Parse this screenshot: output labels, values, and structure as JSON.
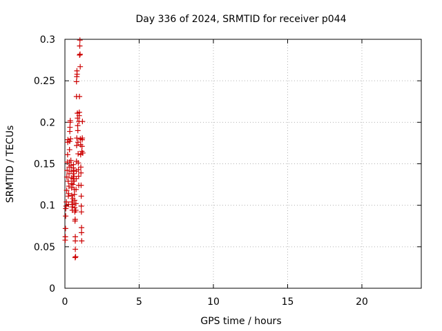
{
  "chart_data": {
    "type": "scatter",
    "title": "Day 336 of 2024, SRMTID for receiver p044",
    "xlabel": "GPS time / hours",
    "ylabel": "SRMTID / TECUs",
    "xlim": [
      0,
      24
    ],
    "ylim": [
      0,
      0.3
    ],
    "x_ticks": [
      0,
      5,
      10,
      15,
      20
    ],
    "x_tick_labels": [
      "0",
      "5",
      "10",
      "15",
      "20"
    ],
    "y_ticks": [
      0,
      0.05,
      0.1,
      0.15,
      0.2,
      0.25,
      0.3
    ],
    "y_tick_labels": [
      "0",
      "0.05",
      "0.1",
      "0.15",
      "0.2",
      "0.25",
      "0.3"
    ],
    "grid": true,
    "marker": "+",
    "marker_color": "#cc0000",
    "series": [
      {
        "name": "SRMTID",
        "points": [
          [
            0.02,
            0.058
          ],
          [
            0.03,
            0.062
          ],
          [
            0.04,
            0.072
          ],
          [
            0.05,
            0.087
          ],
          [
            0.06,
            0.096
          ],
          [
            0.08,
            0.099
          ],
          [
            0.1,
            0.104
          ],
          [
            0.12,
            0.118
          ],
          [
            0.13,
            0.134
          ],
          [
            0.15,
            0.142
          ],
          [
            0.16,
            0.152
          ],
          [
            0.18,
            0.161
          ],
          [
            0.19,
            0.176
          ],
          [
            0.2,
            0.179
          ],
          [
            0.22,
            0.129
          ],
          [
            0.23,
            0.111
          ],
          [
            0.24,
            0.101
          ],
          [
            0.25,
            0.114
          ],
          [
            0.27,
            0.123
          ],
          [
            0.28,
            0.138
          ],
          [
            0.29,
            0.146
          ],
          [
            0.3,
            0.152
          ],
          [
            0.31,
            0.167
          ],
          [
            0.32,
            0.177
          ],
          [
            0.33,
            0.189
          ],
          [
            0.34,
            0.194
          ],
          [
            0.35,
            0.2
          ],
          [
            0.36,
            0.202
          ],
          [
            0.38,
            0.18
          ],
          [
            0.4,
            0.154
          ],
          [
            0.41,
            0.148
          ],
          [
            0.42,
            0.141
          ],
          [
            0.43,
            0.133
          ],
          [
            0.44,
            0.126
          ],
          [
            0.45,
            0.121
          ],
          [
            0.46,
            0.112
          ],
          [
            0.47,
            0.104
          ],
          [
            0.48,
            0.098
          ],
          [
            0.5,
            0.094
          ],
          [
            0.52,
            0.101
          ],
          [
            0.53,
            0.108
          ],
          [
            0.54,
            0.125
          ],
          [
            0.55,
            0.132
          ],
          [
            0.56,
            0.138
          ],
          [
            0.57,
            0.145
          ],
          [
            0.58,
            0.149
          ],
          [
            0.6,
            0.142
          ],
          [
            0.61,
            0.135
          ],
          [
            0.62,
            0.129
          ],
          [
            0.63,
            0.119
          ],
          [
            0.64,
            0.113
          ],
          [
            0.65,
            0.106
          ],
          [
            0.66,
            0.097
          ],
          [
            0.67,
            0.092
          ],
          [
            0.68,
            0.081
          ],
          [
            0.69,
            0.083
          ],
          [
            0.7,
            0.062
          ],
          [
            0.7,
            0.057
          ],
          [
            0.7,
            0.047
          ],
          [
            0.69,
            0.037
          ],
          [
            0.72,
            0.038
          ],
          [
            0.73,
            0.094
          ],
          [
            0.74,
            0.102
          ],
          [
            0.75,
            0.119
          ],
          [
            0.76,
            0.132
          ],
          [
            0.77,
            0.141
          ],
          [
            0.78,
            0.153
          ],
          [
            0.79,
            0.172
          ],
          [
            0.8,
            0.181
          ],
          [
            0.78,
            0.231
          ],
          [
            0.78,
            0.249
          ],
          [
            0.8,
            0.255
          ],
          [
            0.81,
            0.262
          ],
          [
            0.82,
            0.258
          ],
          [
            0.84,
            0.211
          ],
          [
            0.85,
            0.205
          ],
          [
            0.86,
            0.196
          ],
          [
            0.87,
            0.19
          ],
          [
            0.88,
            0.176
          ],
          [
            0.89,
            0.162
          ],
          [
            0.9,
            0.151
          ],
          [
            0.91,
            0.143
          ],
          [
            0.92,
            0.135
          ],
          [
            0.93,
            0.124
          ],
          [
            0.95,
            0.201
          ],
          [
            0.96,
            0.208
          ],
          [
            0.97,
            0.212
          ],
          [
            0.98,
            0.231
          ],
          [
            0.99,
            0.281
          ],
          [
            1.0,
            0.292
          ],
          [
            1.01,
            0.299
          ],
          [
            1.02,
            0.282
          ],
          [
            1.03,
            0.267
          ],
          [
            1.04,
            0.18
          ],
          [
            1.05,
            0.173
          ],
          [
            1.06,
            0.161
          ],
          [
            1.07,
            0.146
          ],
          [
            1.08,
            0.139
          ],
          [
            1.09,
            0.124
          ],
          [
            1.1,
            0.111
          ],
          [
            1.1,
            0.099
          ],
          [
            1.11,
            0.092
          ],
          [
            1.12,
            0.073
          ],
          [
            1.12,
            0.067
          ],
          [
            1.13,
            0.057
          ],
          [
            1.14,
            0.165
          ],
          [
            1.15,
            0.171
          ],
          [
            1.16,
            0.179
          ],
          [
            1.17,
            0.181
          ],
          [
            1.18,
            0.201
          ],
          [
            1.2,
            0.163
          ]
        ]
      }
    ]
  }
}
